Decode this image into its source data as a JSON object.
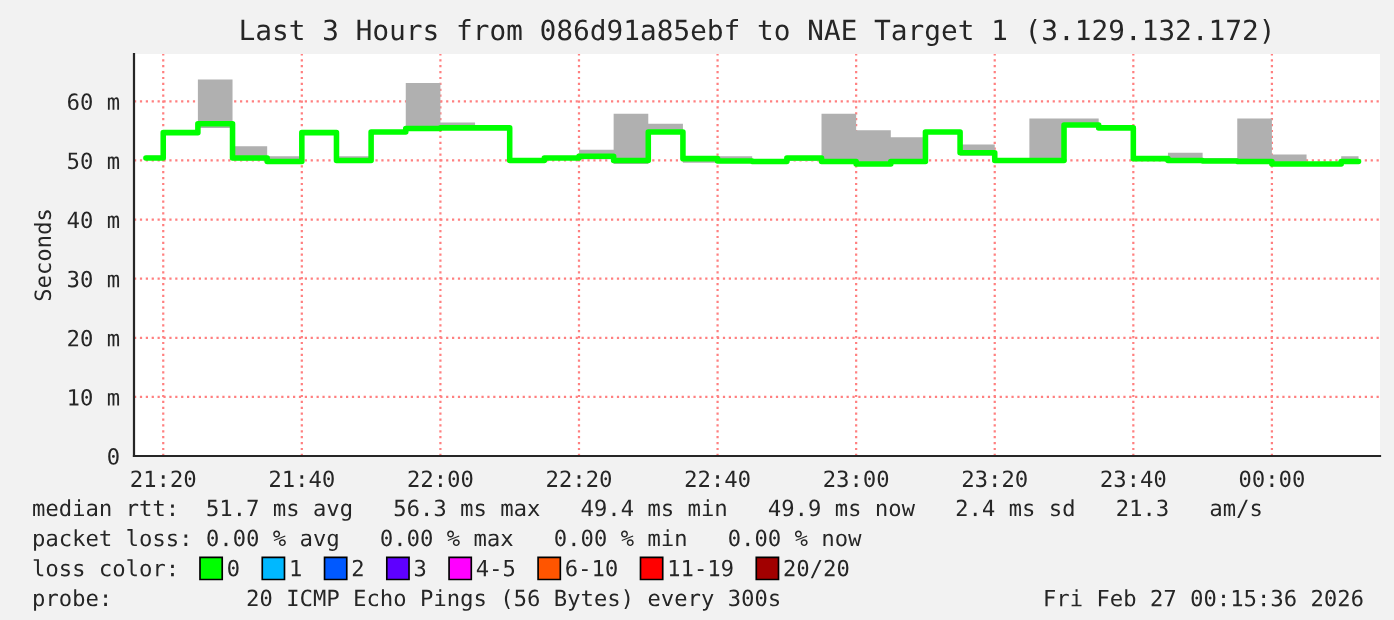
{
  "chart_data": {
    "type": "step",
    "title": "Last 3 Hours from 086d91a85ebf to NAE Target 1 (3.129.132.172)",
    "ylabel": "Seconds",
    "x": [
      21.29167,
      21.375,
      21.45833,
      21.54167,
      21.625,
      21.70833,
      21.79167,
      21.875,
      21.95833,
      22.04167,
      22.125,
      22.20833,
      22.29167,
      22.375,
      22.45833,
      22.54167,
      22.625,
      22.70833,
      22.79167,
      22.875,
      22.95833,
      23.04167,
      23.125,
      23.20833,
      23.29167,
      23.375,
      23.45833,
      23.54167,
      23.625,
      23.70833,
      23.79167,
      23.875,
      23.95833,
      24.04167,
      24.125,
      24.20833
    ],
    "series": [
      {
        "name": "0",
        "color": "#00ff00",
        "values": [
          50.4,
          54.7,
          56.2,
          50.4,
          49.8,
          54.7,
          50.0,
          54.8,
          55.4,
          55.5,
          55.5,
          50.0,
          50.4,
          50.7,
          50.0,
          54.8,
          50.3,
          49.9,
          49.8,
          50.4,
          49.8,
          49.4,
          49.8,
          54.8,
          51.3,
          50.0,
          50.0,
          56.0,
          55.5,
          50.3,
          50.0,
          49.9,
          49.8,
          49.4,
          49.4,
          49.8
        ],
        "lower": [
          50.2,
          54.7,
          55.5,
          50.0,
          49.6,
          54.7,
          49.6,
          54.8,
          55.2,
          55.2,
          55.2,
          49.9,
          50.2,
          50.2,
          49.4,
          54.6,
          49.6,
          49.6,
          49.7,
          49.9,
          49.4,
          49.2,
          49.5,
          54.8,
          50.8,
          49.9,
          49.9,
          55.7,
          55.2,
          50.1,
          49.7,
          49.6,
          49.5,
          49.2,
          49.3,
          49.5
        ],
        "upper": [
          50.8,
          54.7,
          63.7,
          52.4,
          50.7,
          54.7,
          50.7,
          54.8,
          63.1,
          56.4,
          55.5,
          50.2,
          50.4,
          51.8,
          57.9,
          56.2,
          50.3,
          50.7,
          49.8,
          50.4,
          57.9,
          55.1,
          53.9,
          54.8,
          52.7,
          50.0,
          57.1,
          57.1,
          55.5,
          50.3,
          51.3,
          50.4,
          57.1,
          51.0,
          49.4,
          50.7
        ]
      },
      {
        "name": "1",
        "color": "#00b8ff",
        "values": [
          null,
          null,
          null,
          null,
          null,
          null,
          null,
          null,
          null,
          null,
          null,
          null,
          null,
          null,
          null,
          null,
          null,
          null,
          null,
          null,
          null,
          null,
          null,
          null,
          null,
          null,
          null,
          null,
          null,
          null,
          null,
          null,
          null,
          null,
          null,
          null
        ]
      },
      {
        "name": "2",
        "color": "#0059ff",
        "values": [
          null,
          null,
          null,
          null,
          null,
          null,
          null,
          null,
          null,
          null,
          null,
          null,
          null,
          null,
          null,
          null,
          null,
          null,
          null,
          null,
          null,
          null,
          null,
          null,
          null,
          null,
          null,
          null,
          null,
          null,
          null,
          null,
          null,
          null,
          null,
          null
        ]
      },
      {
        "name": "3",
        "color": "#5e00ff",
        "values": [
          null,
          null,
          null,
          null,
          null,
          null,
          null,
          null,
          null,
          null,
          null,
          null,
          null,
          null,
          null,
          null,
          null,
          null,
          null,
          null,
          null,
          null,
          null,
          null,
          null,
          null,
          null,
          null,
          null,
          null,
          null,
          null,
          null,
          null,
          null,
          null
        ]
      },
      {
        "name": "4-5",
        "color": "#ff00ff",
        "values": [
          null,
          null,
          null,
          null,
          null,
          null,
          null,
          null,
          null,
          null,
          null,
          null,
          null,
          null,
          null,
          null,
          null,
          null,
          null,
          null,
          null,
          null,
          null,
          null,
          null,
          null,
          null,
          null,
          null,
          null,
          null,
          null,
          null,
          null,
          null,
          null
        ]
      },
      {
        "name": "6-10",
        "color": "#ff5500",
        "values": [
          null,
          null,
          null,
          null,
          null,
          null,
          null,
          null,
          null,
          null,
          null,
          null,
          null,
          null,
          null,
          null,
          null,
          null,
          null,
          null,
          null,
          null,
          null,
          null,
          null,
          null,
          null,
          null,
          null,
          null,
          null,
          null,
          null,
          null,
          null,
          null
        ]
      },
      {
        "name": "11-19",
        "color": "#ff0000",
        "values": [
          null,
          null,
          null,
          null,
          null,
          null,
          null,
          null,
          null,
          null,
          null,
          null,
          null,
          null,
          null,
          null,
          null,
          null,
          null,
          null,
          null,
          null,
          null,
          null,
          null,
          null,
          null,
          null,
          null,
          null,
          null,
          null,
          null,
          null,
          null,
          null
        ]
      },
      {
        "name": "20/20",
        "color": "#a10000",
        "values": [
          null,
          null,
          null,
          null,
          null,
          null,
          null,
          null,
          null,
          null,
          null,
          null,
          null,
          null,
          null,
          null,
          null,
          null,
          null,
          null,
          null,
          null,
          null,
          null,
          null,
          null,
          null,
          null,
          null,
          null,
          null,
          null,
          null,
          null,
          null,
          null
        ]
      }
    ],
    "xlim": [
      21.263,
      24.26
    ],
    "xticks": [
      {
        "value": 21.33333,
        "label": "21:20"
      },
      {
        "value": 21.66667,
        "label": "21:40"
      },
      {
        "value": 22,
        "label": "22:00"
      },
      {
        "value": 22.33333,
        "label": "22:20"
      },
      {
        "value": 22.66667,
        "label": "22:40"
      },
      {
        "value": 23,
        "label": "23:00"
      },
      {
        "value": 23.33333,
        "label": "23:20"
      },
      {
        "value": 23.66667,
        "label": "23:40"
      },
      {
        "value": 24,
        "label": "00:00"
      }
    ],
    "ylim": [
      0,
      68
    ],
    "yticks": [
      0,
      {
        "value": 10,
        "label": "10 m"
      },
      {
        "value": 20,
        "label": "20 m"
      },
      {
        "value": 30,
        "label": "30 m"
      },
      {
        "value": 40,
        "label": "40 m"
      },
      {
        "value": 50,
        "label": "50 m"
      },
      {
        "value": 60,
        "label": "60 m"
      }
    ],
    "grid": true,
    "legend": "bottom",
    "legend_title": "loss color:",
    "line_style": "solid",
    "marker": "none",
    "annotations": [
      "median rtt:  51.7 ms avg   56.3 ms max   49.4 ms min   49.9 ms now   2.4 ms sd   21.3   am/s",
      "packet loss: 0.00 % avg   0.00 % max   0.00 % min   0.00 % now",
      "probe:          20 ICMP Echo Pings (56 Bytes) every 300s",
      "Fri Feb 27 00:15:36 2026"
    ]
  }
}
